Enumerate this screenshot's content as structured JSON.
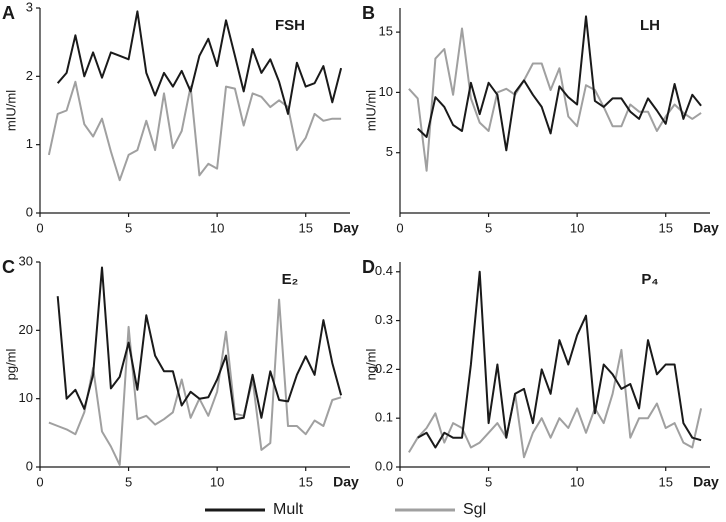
{
  "chart_data": [
    {
      "type": "line",
      "panel": "A",
      "title": "FSH",
      "ylabel": "mIU/ml",
      "xlabel": "Day",
      "x": [
        0.5,
        1,
        1.5,
        2,
        2.5,
        3,
        3.5,
        4,
        4.5,
        5,
        5.5,
        6,
        6.5,
        7,
        7.5,
        8,
        8.5,
        9,
        9.5,
        10,
        10.5,
        11,
        11.5,
        12,
        12.5,
        13,
        13.5,
        14,
        14.5,
        15,
        15.5,
        16,
        16.5,
        17
      ],
      "series": [
        {
          "name": "Mult",
          "color": "#1a1a1a",
          "values": [
            null,
            1.9,
            2.05,
            2.6,
            2.0,
            2.35,
            1.98,
            2.35,
            2.3,
            2.25,
            2.95,
            2.05,
            1.72,
            2.05,
            1.85,
            2.08,
            1.78,
            2.3,
            2.55,
            2.15,
            2.82,
            2.3,
            1.78,
            2.4,
            2.05,
            2.25,
            1.92,
            1.45,
            2.2,
            1.85,
            1.9,
            2.15,
            1.62,
            2.12
          ]
        },
        {
          "name": "Sgl",
          "color": "#a0a0a0",
          "values": [
            0.85,
            1.45,
            1.5,
            1.92,
            1.3,
            1.12,
            1.38,
            0.9,
            0.48,
            0.85,
            0.92,
            1.35,
            0.92,
            1.75,
            0.95,
            1.2,
            1.85,
            0.55,
            0.72,
            0.65,
            1.85,
            1.82,
            1.28,
            1.75,
            1.7,
            1.55,
            1.65,
            1.55,
            0.92,
            1.1,
            1.45,
            1.35,
            1.38,
            1.38
          ]
        }
      ],
      "xlim": [
        0,
        17.5
      ],
      "xticks": [
        0,
        5,
        10,
        15
      ],
      "ylim": [
        0,
        3
      ],
      "yticks": [
        0,
        1,
        2,
        3
      ]
    },
    {
      "type": "line",
      "panel": "B",
      "title": "LH",
      "ylabel": "mIU/ml",
      "xlabel": "Day",
      "x": [
        0.5,
        1,
        1.5,
        2,
        2.5,
        3,
        3.5,
        4,
        4.5,
        5,
        5.5,
        6,
        6.5,
        7,
        7.5,
        8,
        8.5,
        9,
        9.5,
        10,
        10.5,
        11,
        11.5,
        12,
        12.5,
        13,
        13.5,
        14,
        14.5,
        15,
        15.5,
        16,
        16.5,
        17
      ],
      "series": [
        {
          "color": "#1a1a1a",
          "values": [
            null,
            7,
            6.3,
            9.6,
            8.8,
            7.3,
            6.8,
            10.8,
            8.2,
            10.8,
            9.8,
            5.2,
            10,
            11,
            9.8,
            8.8,
            6.6,
            10.5,
            9.6,
            9,
            16.3,
            9.3,
            8.8,
            9.5,
            9.5,
            8.4,
            7.8,
            9.5,
            8.5,
            7.4,
            10.7,
            7.8,
            9.8,
            8.9
          ]
        },
        {
          "color": "#a0a0a0",
          "values": [
            10.3,
            9.5,
            3.5,
            12.8,
            13.6,
            9.8,
            15.3,
            9.5,
            7.5,
            6.8,
            10,
            10.3,
            9.8,
            11,
            12.4,
            12.4,
            10.2,
            12,
            8,
            7.2,
            10.6,
            10.2,
            8.8,
            7.2,
            7.2,
            9,
            8.4,
            8.4,
            6.8,
            8,
            9,
            8.3,
            7.8,
            8.3
          ]
        }
      ],
      "xlim": [
        0,
        17.5
      ],
      "xticks": [
        0,
        5,
        10,
        15
      ],
      "ylim": [
        0,
        17
      ],
      "yticks": [
        5,
        10,
        15
      ]
    },
    {
      "type": "line",
      "panel": "C",
      "title": "E₂",
      "ylabel": "pg/ml",
      "xlabel": "Day",
      "x": [
        0.5,
        1,
        1.5,
        2,
        2.5,
        3,
        3.5,
        4,
        4.5,
        5,
        5.5,
        6,
        6.5,
        7,
        7.5,
        8,
        8.5,
        9,
        9.5,
        10,
        10.5,
        11,
        11.5,
        12,
        12.5,
        13,
        13.5,
        14,
        14.5,
        15,
        15.5,
        16,
        16.5,
        17
      ],
      "series": [
        {
          "color": "#1a1a1a",
          "values": [
            null,
            25,
            10,
            11.3,
            8.5,
            13.5,
            29.2,
            11.5,
            13.2,
            18.2,
            11.3,
            22.2,
            16.3,
            14,
            14,
            9,
            11,
            10,
            10.2,
            12.8,
            16.3,
            7,
            7.2,
            13.5,
            7.2,
            14,
            9.8,
            9.6,
            13.5,
            16.2,
            13.5,
            21.5,
            15.2,
            10.5
          ]
        },
        {
          "color": "#a0a0a0",
          "values": [
            6.5,
            6,
            5.5,
            4.8,
            8,
            14.5,
            5.2,
            3,
            0.3,
            20.5,
            7,
            7.5,
            6.2,
            7,
            8,
            12.8,
            7.2,
            10,
            7.5,
            11,
            19.8,
            7.8,
            7.5,
            12.8,
            2.5,
            3.5,
            24.5,
            6,
            6,
            4.8,
            6.8,
            6,
            9.8,
            10.2
          ]
        }
      ],
      "xlim": [
        0,
        17.5
      ],
      "xticks": [
        0,
        5,
        10,
        15
      ],
      "ylim": [
        0,
        30
      ],
      "yticks": [
        0,
        10,
        20,
        30
      ]
    },
    {
      "type": "line",
      "panel": "D",
      "title": "P₄",
      "ylabel": "ng/ml",
      "xlabel": "Day",
      "x": [
        0.5,
        1,
        1.5,
        2,
        2.5,
        3,
        3.5,
        4,
        4.5,
        5,
        5.5,
        6,
        6.5,
        7,
        7.5,
        8,
        8.5,
        9,
        9.5,
        10,
        10.5,
        11,
        11.5,
        12,
        12.5,
        13,
        13.5,
        14,
        14.5,
        15,
        15.5,
        16,
        16.5,
        17
      ],
      "series": [
        {
          "color": "#1a1a1a",
          "values": [
            null,
            0.06,
            0.07,
            0.04,
            0.07,
            0.06,
            0.06,
            0.21,
            0.4,
            0.09,
            0.21,
            0.06,
            0.15,
            0.16,
            0.09,
            0.2,
            0.15,
            0.26,
            0.21,
            0.27,
            0.31,
            0.11,
            0.21,
            0.19,
            0.16,
            0.17,
            0.12,
            0.26,
            0.19,
            0.21,
            0.21,
            0.09,
            0.06,
            0.055
          ]
        },
        {
          "color": "#a0a0a0",
          "values": [
            0.03,
            0.06,
            0.08,
            0.11,
            0.05,
            0.09,
            0.08,
            0.04,
            0.05,
            0.07,
            0.09,
            0.06,
            0.15,
            0.02,
            0.07,
            0.1,
            0.06,
            0.1,
            0.08,
            0.12,
            0.07,
            0.12,
            0.09,
            0.15,
            0.24,
            0.06,
            0.1,
            0.1,
            0.13,
            0.08,
            0.09,
            0.05,
            0.04,
            0.12
          ]
        }
      ],
      "xlim": [
        0,
        17.5
      ],
      "xticks": [
        0,
        5,
        10,
        15
      ],
      "ylim": [
        0,
        0.42
      ],
      "yticks": [
        {
          "value": 0,
          "label": "0.0"
        },
        {
          "value": 0.1,
          "label": "0.1"
        },
        {
          "value": 0.2,
          "label": "0.2"
        },
        {
          "value": 0.3,
          "label": "0.3"
        },
        {
          "value": 0.4,
          "label": "0.4"
        }
      ]
    }
  ]
}
